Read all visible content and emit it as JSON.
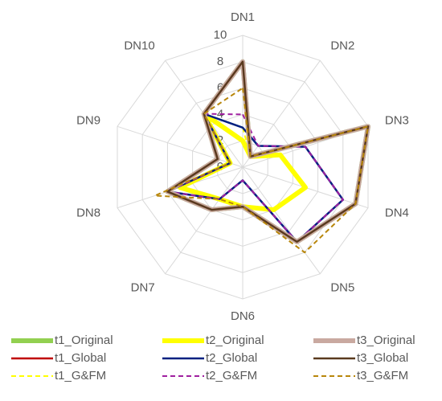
{
  "chart_data": {
    "type": "radar",
    "categories": [
      "DN1",
      "DN2",
      "DN3",
      "DN4",
      "DN5",
      "DN6",
      "DN7",
      "DN8",
      "DN9",
      "DN10"
    ],
    "ylim": [
      0,
      10
    ],
    "yticks": [
      0,
      2,
      4,
      6,
      8,
      10
    ],
    "grid": true,
    "series": [
      {
        "name": "t1_Original",
        "color": "#92d050",
        "style": "thick",
        "values": [
          8,
          1,
          10,
          9,
          7,
          3,
          4,
          6,
          2,
          5
        ]
      },
      {
        "name": "t1_Global",
        "color": "#c00000",
        "style": "solid",
        "values": [
          8,
          1,
          10,
          9,
          7,
          3,
          4,
          6,
          2,
          5
        ]
      },
      {
        "name": "t1_G&FM",
        "color": "#ffff00",
        "style": "dashed",
        "values": [
          3,
          1,
          3,
          5,
          4,
          3,
          3,
          5,
          1,
          5
        ]
      },
      {
        "name": "t2_Original",
        "color": "#ffff00",
        "style": "thick",
        "values": [
          2,
          1,
          3,
          5,
          4,
          3,
          3,
          5,
          1,
          5
        ]
      },
      {
        "name": "t2_Global",
        "color": "#002080",
        "style": "solid",
        "values": [
          3,
          2,
          5,
          8,
          7,
          1,
          3,
          6,
          1,
          5
        ]
      },
      {
        "name": "t2_G&FM",
        "color": "#a020a0",
        "style": "dashed",
        "values": [
          4,
          2,
          5,
          8,
          7,
          1,
          3,
          6,
          1,
          5
        ]
      },
      {
        "name": "t3_Original",
        "color": "#c9a9a0",
        "style": "thick",
        "values": [
          8,
          1,
          10,
          9,
          7,
          3,
          4,
          6,
          2,
          5
        ]
      },
      {
        "name": "t3_Global",
        "color": "#5a3a1e",
        "style": "solid",
        "values": [
          8,
          1,
          10,
          9,
          7,
          3,
          4,
          6,
          2,
          5
        ]
      },
      {
        "name": "t3_G&FM",
        "color": "#b8860b",
        "style": "dashed",
        "values": [
          6,
          1,
          10,
          9,
          8,
          3,
          3,
          7,
          1,
          5
        ]
      }
    ]
  }
}
